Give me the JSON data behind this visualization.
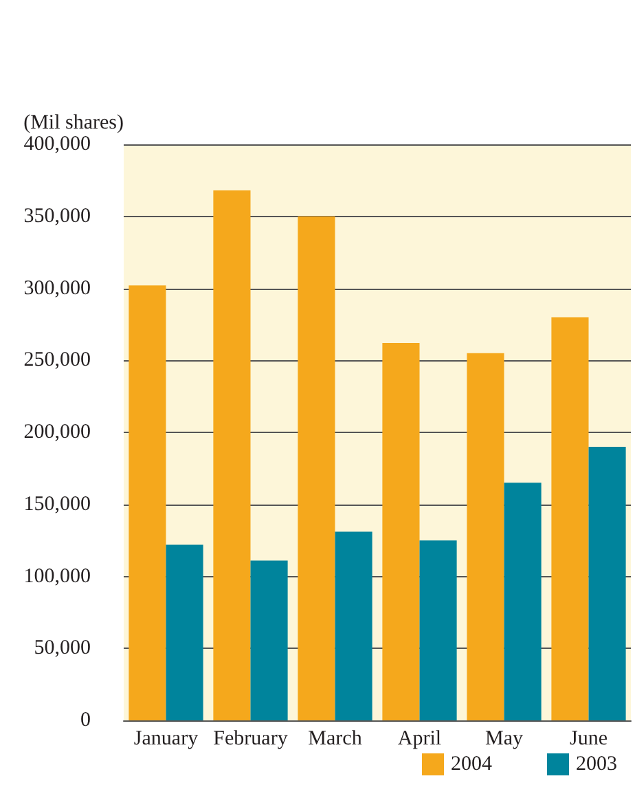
{
  "chart_data": {
    "type": "bar",
    "ylabel": "(Mil shares)",
    "categories": [
      "January",
      "February",
      "March",
      "April",
      "May",
      "June"
    ],
    "series": [
      {
        "name": "2004",
        "color": "#f5a81c",
        "values": [
          302000,
          368000,
          350000,
          262000,
          255000,
          280000
        ]
      },
      {
        "name": "2003",
        "color": "#00849c",
        "values": [
          122000,
          111000,
          131000,
          125000,
          165000,
          190000
        ]
      }
    ],
    "ylim": [
      0,
      400000
    ],
    "yticks": [
      0,
      {
        "value": 50000,
        "label": "50,000"
      },
      {
        "value": 100000,
        "label": "100,000"
      },
      {
        "value": 150000,
        "label": "150,000"
      },
      {
        "value": 200000,
        "label": "200,000"
      },
      {
        "value": 250000,
        "label": "250,000"
      },
      {
        "value": 300000,
        "label": "300,000"
      },
      {
        "value": 350000,
        "label": "350,000"
      },
      {
        "value": 400000,
        "label": "400,000"
      }
    ],
    "grid": "y",
    "legend": "bottom right"
  }
}
